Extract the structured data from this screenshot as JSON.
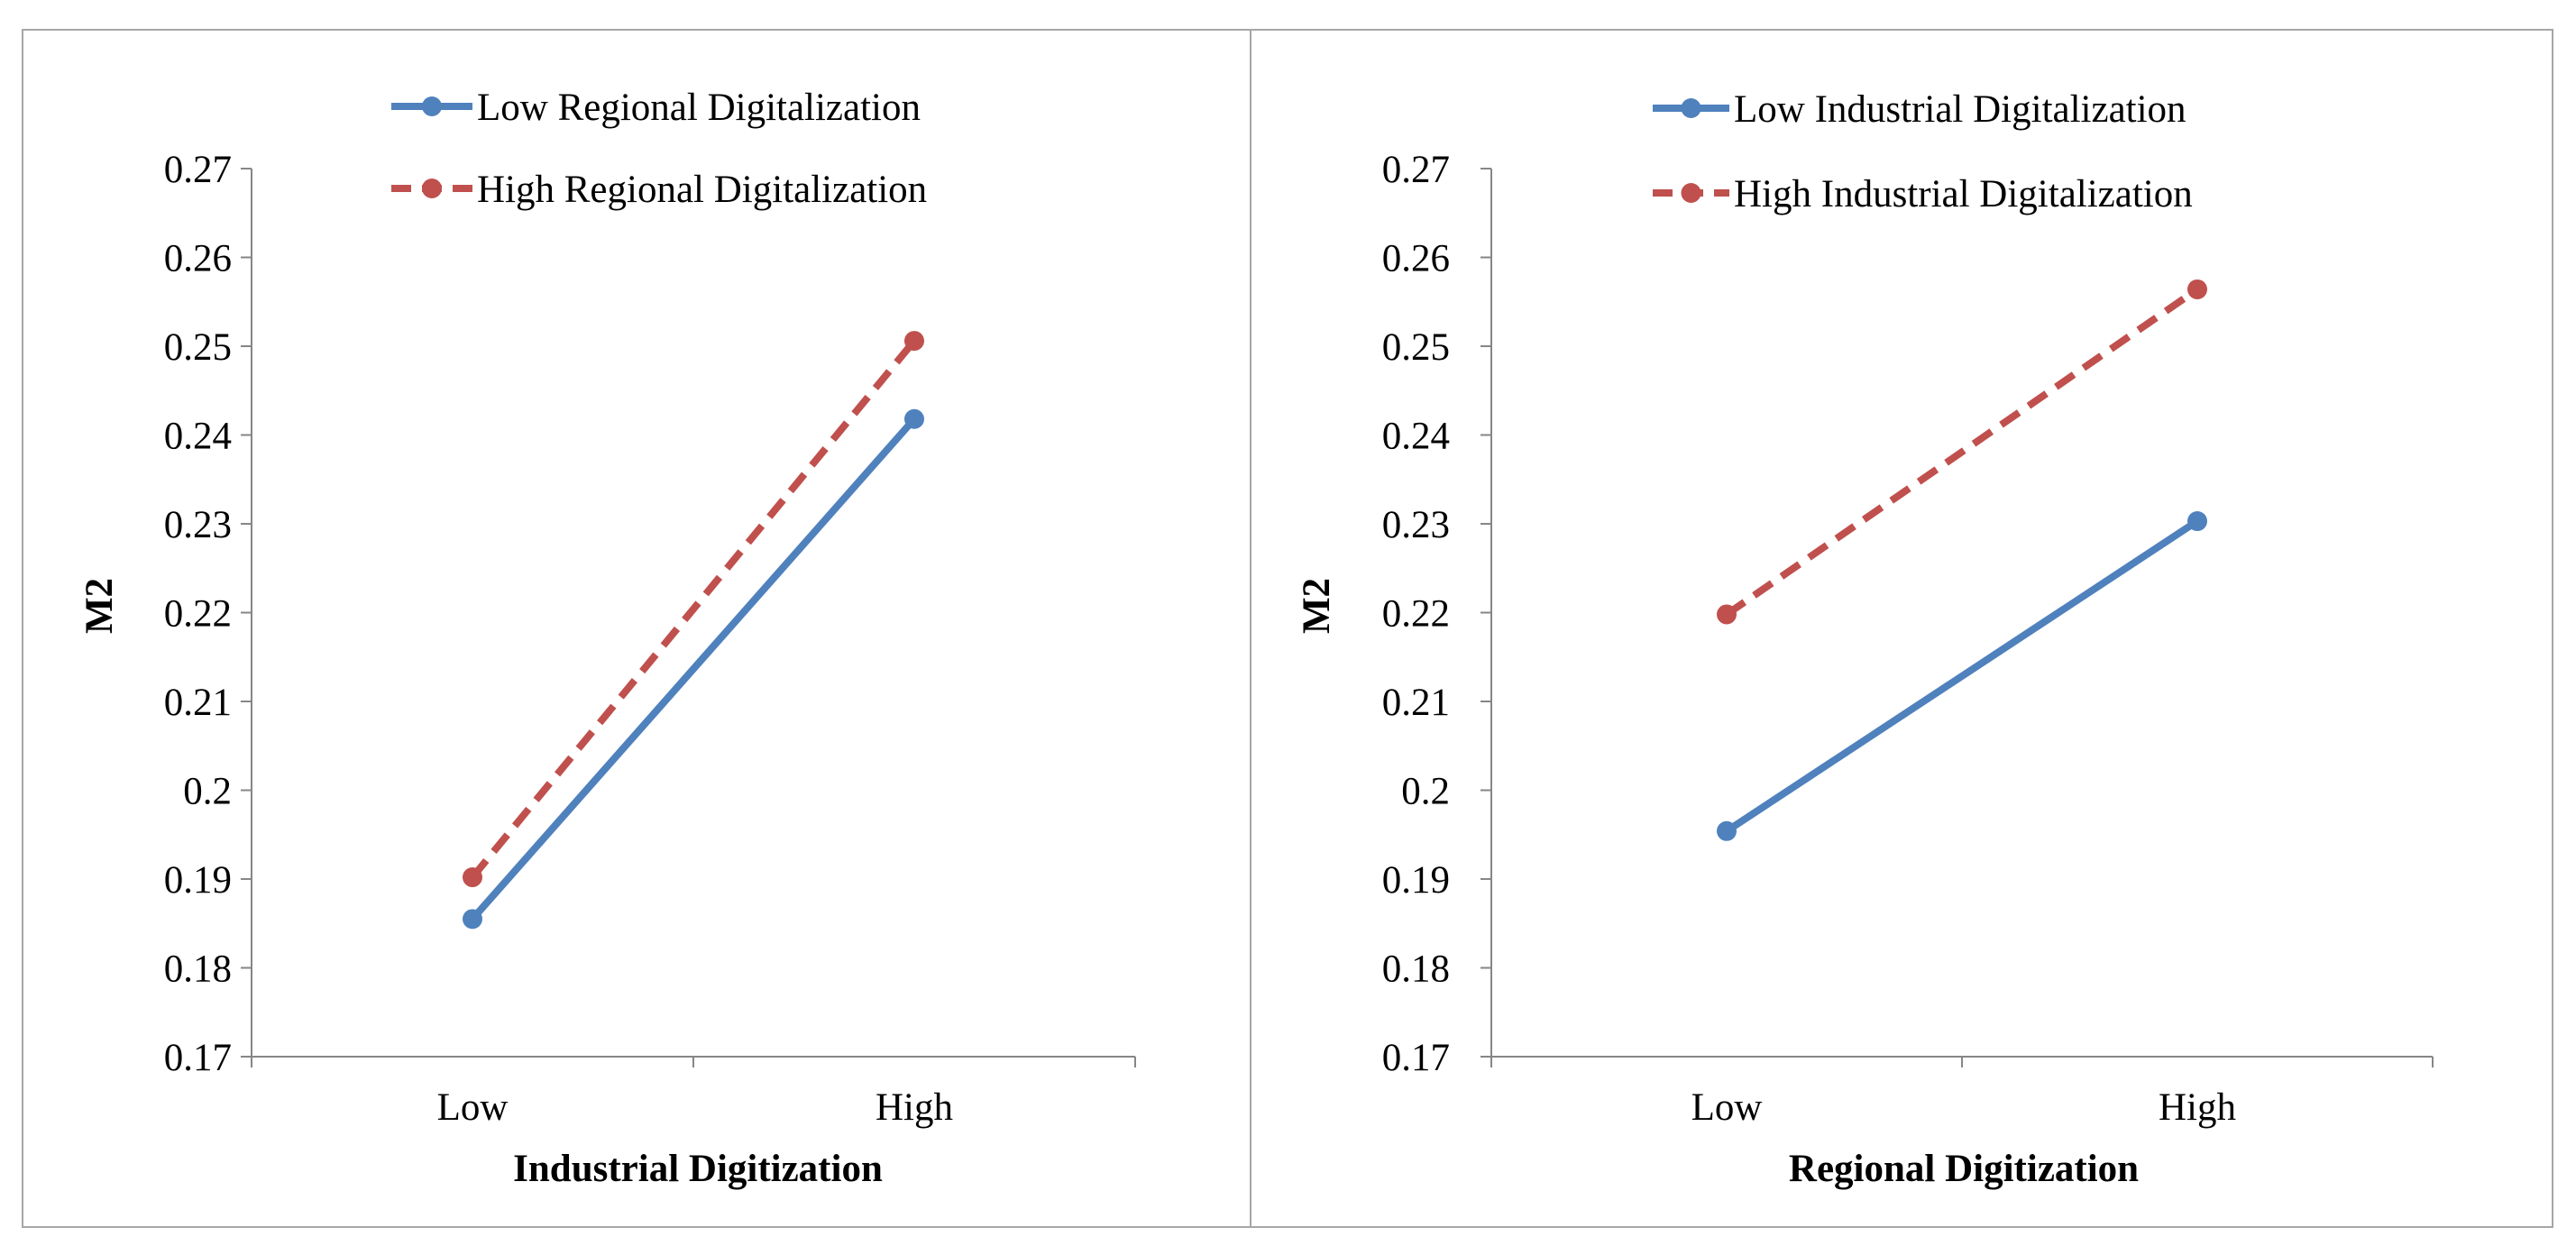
{
  "colors": {
    "low_series": "#4F81BD",
    "high_series": "#C0504D",
    "axis": "#868686"
  },
  "chart_data": [
    {
      "type": "line",
      "title": "",
      "categories": [
        "Low",
        "High"
      ],
      "xlabel": "Industrial Digitization",
      "ylabel": "M2",
      "ylim": [
        0.17,
        0.27
      ],
      "yticks": [
        "0.17",
        "0.18",
        "0.19",
        "0.2",
        "0.21",
        "0.22",
        "0.23",
        "0.24",
        "0.25",
        "0.26",
        "0.27"
      ],
      "grid": false,
      "legend": "top",
      "series": [
        {
          "name": "Low Regional Digitalization",
          "style": "solid",
          "color": "#4F81BD",
          "values": [
            0.1855,
            0.2418
          ]
        },
        {
          "name": "High Regional Digitalization",
          "style": "dashed",
          "color": "#C0504D",
          "values": [
            0.1902,
            0.2506
          ]
        }
      ]
    },
    {
      "type": "line",
      "title": "",
      "categories": [
        "Low",
        "High"
      ],
      "xlabel": "Regional Digitization",
      "ylabel": "M2",
      "ylim": [
        0.17,
        0.27
      ],
      "yticks": [
        "0.17",
        "0.18",
        "0.19",
        "0.2",
        "0.21",
        "0.22",
        "0.23",
        "0.24",
        "0.25",
        "0.26",
        "0.27"
      ],
      "grid": false,
      "legend": "top",
      "series": [
        {
          "name": "Low Industrial Digitalization",
          "style": "solid",
          "color": "#4F81BD",
          "values": [
            0.1954,
            0.2303
          ]
        },
        {
          "name": "High Industrial Digitalization",
          "style": "dashed",
          "color": "#C0504D",
          "values": [
            0.2198,
            0.2564
          ]
        }
      ]
    }
  ]
}
